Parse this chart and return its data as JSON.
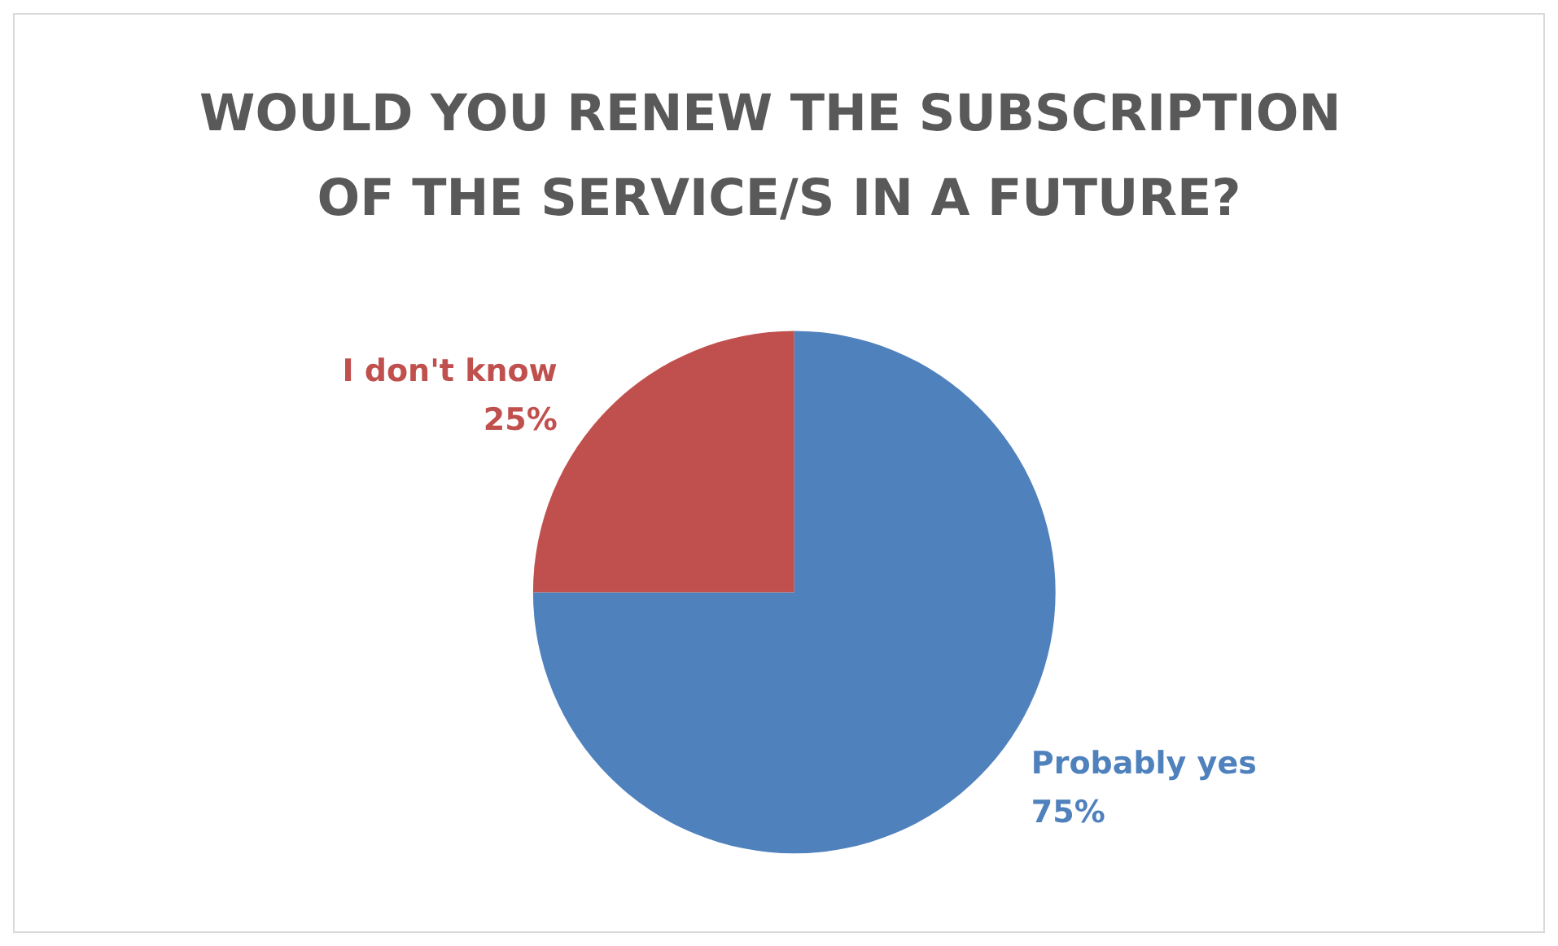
{
  "chart_data": {
    "type": "pie",
    "title": "WOULD YOU RENEW THE SUBSCRIPTION OF THE SERVICE/S IN A FUTURE?",
    "categories": [
      "Probably yes",
      "I don't know"
    ],
    "values": [
      75,
      25
    ],
    "colors": [
      "#4f81bd",
      "#c0504d"
    ],
    "value_labels": [
      "75%",
      "25%"
    ],
    "legend": false
  }
}
